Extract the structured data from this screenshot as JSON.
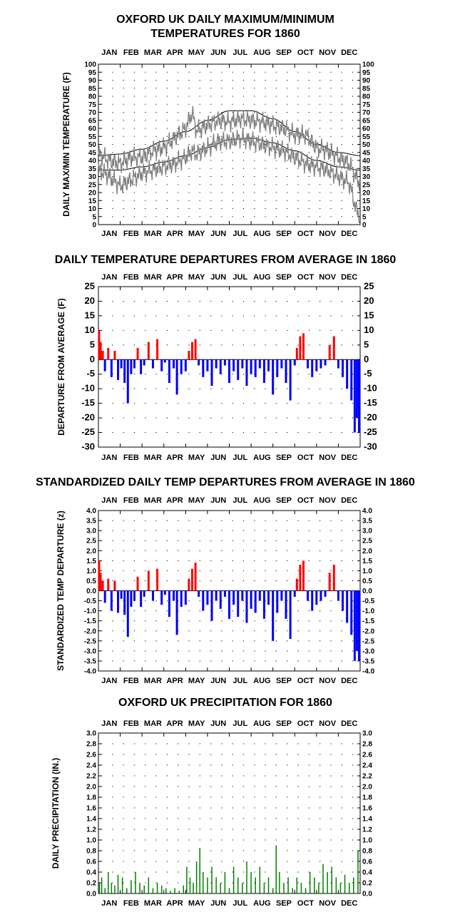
{
  "chart_data": [
    {
      "id": "maxmin",
      "type": "line",
      "title_lines": [
        "OXFORD UK DAILY MAXIMUM/MINIMUM",
        "TEMPERATURES FOR 1860"
      ],
      "ylabel": "DAILY MAX/MIN TEMPERATURE (F)",
      "months": [
        "JAN",
        "FEB",
        "MAR",
        "APR",
        "MAY",
        "JUN",
        "JUL",
        "AUG",
        "SEP",
        "OCT",
        "NOV",
        "DEC"
      ],
      "ylim": [
        0,
        100
      ],
      "ytick_step": 5,
      "ytick_labels": [
        "0",
        "5",
        "10",
        "15",
        "20",
        "25",
        "30",
        "35",
        "40",
        "45",
        "50",
        "55",
        "60",
        "65",
        "70",
        "75",
        "80",
        "85",
        "90",
        "95",
        "100"
      ],
      "grid": "dotted",
      "series": [
        {
          "role": "average_max",
          "color": "#000000",
          "x_month": [
            1,
            2,
            3,
            4,
            5,
            6,
            7,
            8,
            9,
            10,
            11,
            12,
            13
          ],
          "values": [
            43,
            44,
            47,
            52,
            58,
            65,
            71,
            71,
            66,
            58,
            50,
            45,
            43
          ]
        },
        {
          "role": "average_min",
          "color": "#000000",
          "x_month": [
            1,
            2,
            3,
            4,
            5,
            6,
            7,
            8,
            9,
            10,
            11,
            12,
            13
          ],
          "values": [
            34,
            34,
            36,
            39,
            43,
            48,
            53,
            54,
            51,
            46,
            40,
            36,
            34
          ]
        },
        {
          "role": "daily_max",
          "color": "#808080",
          "x_month": [
            1,
            1.5,
            2,
            2.5,
            3,
            3.5,
            4,
            4.5,
            5,
            5.3,
            5.5,
            6,
            6.5,
            7,
            7.5,
            8,
            8.5,
            9,
            9.5,
            10,
            10.5,
            11,
            11.5,
            12,
            12.5,
            12.8,
            13
          ],
          "values": [
            44,
            40,
            38,
            42,
            42,
            46,
            48,
            54,
            60,
            70,
            58,
            62,
            65,
            64,
            66,
            65,
            64,
            62,
            60,
            56,
            56,
            48,
            46,
            42,
            38,
            30,
            25
          ]
        },
        {
          "role": "daily_min",
          "color": "#808080",
          "x_month": [
            1,
            1.5,
            2,
            2.5,
            3,
            3.5,
            4,
            4.5,
            5,
            5.3,
            5.5,
            6,
            6.5,
            7,
            7.5,
            8,
            8.5,
            9,
            9.5,
            10,
            10.5,
            11,
            11.5,
            12,
            12.5,
            12.8,
            13
          ],
          "values": [
            34,
            30,
            24,
            28,
            32,
            34,
            36,
            38,
            42,
            46,
            44,
            48,
            52,
            52,
            54,
            52,
            50,
            48,
            46,
            42,
            38,
            36,
            34,
            30,
            26,
            10,
            5
          ]
        }
      ]
    },
    {
      "id": "departures",
      "type": "bar",
      "title": "DAILY TEMPERATURE DEPARTURES FROM AVERAGE IN 1860",
      "ylabel": "DEPARTURE FROM AVERAGE (F)",
      "months": [
        "JAN",
        "FEB",
        "MAR",
        "APR",
        "MAY",
        "JUN",
        "JUL",
        "AUG",
        "SEP",
        "OCT",
        "NOV",
        "DEC"
      ],
      "ylim": [
        -30,
        25
      ],
      "ytick_step": 5,
      "ytick_labels": [
        "-30",
        "-25",
        "-20",
        "-15",
        "-10",
        "-5",
        "0",
        "5",
        "10",
        "15",
        "20",
        "25"
      ],
      "colors": {
        "positive": "#ff0000",
        "negative": "#0000ff"
      },
      "x_month": [
        1.03,
        1.1,
        1.2,
        1.3,
        1.45,
        1.6,
        1.75,
        1.9,
        2.05,
        2.2,
        2.35,
        2.5,
        2.65,
        2.8,
        2.95,
        3.1,
        3.3,
        3.5,
        3.7,
        3.9,
        4.05,
        4.25,
        4.45,
        4.6,
        4.8,
        5.0,
        5.15,
        5.3,
        5.45,
        5.6,
        5.8,
        6.0,
        6.2,
        6.4,
        6.6,
        6.8,
        7.0,
        7.2,
        7.4,
        7.6,
        7.8,
        8.0,
        8.2,
        8.4,
        8.6,
        8.8,
        9.0,
        9.2,
        9.4,
        9.6,
        9.8,
        10.0,
        10.1,
        10.25,
        10.4,
        10.6,
        10.8,
        11.0,
        11.2,
        11.4,
        11.6,
        11.8,
        12.0,
        12.2,
        12.4,
        12.6,
        12.75,
        12.85,
        12.95
      ],
      "values": [
        10,
        6,
        3,
        -4,
        4,
        -6,
        3,
        -7,
        -3,
        -8,
        -15,
        -5,
        -3,
        4,
        -5,
        -2,
        6,
        -3,
        7,
        -4,
        -1,
        -8,
        -3,
        -12,
        -5,
        -4,
        3,
        6,
        7,
        -2,
        -6,
        -4,
        -9,
        -3,
        -5,
        -2,
        -8,
        -4,
        -7,
        -3,
        -9,
        -5,
        -6,
        -3,
        -8,
        -4,
        -12,
        -6,
        -3,
        -8,
        -14,
        -2,
        4,
        8,
        9,
        -3,
        -6,
        -4,
        -3,
        -2,
        5,
        8,
        -3,
        -6,
        -10,
        -14,
        -25,
        -20,
        -25
      ]
    },
    {
      "id": "standardized",
      "type": "bar",
      "title": "STANDARDIZED DAILY TEMP DEPARTURES FROM AVERAGE IN 1860",
      "ylabel": "STANDARDIZED TEMP DEPARTURE (z)",
      "months": [
        "JAN",
        "FEB",
        "MAR",
        "APR",
        "MAY",
        "JUN",
        "JUL",
        "AUG",
        "SEP",
        "OCT",
        "NOV",
        "DEC"
      ],
      "ylim": [
        -4.0,
        4.0
      ],
      "ytick_step": 0.5,
      "ytick_labels": [
        "-4.0",
        "-3.5",
        "-3.0",
        "-2.5",
        "-2.0",
        "-1.5",
        "-1.0",
        "-0.5",
        "0.0",
        "0.5",
        "1.0",
        "1.5",
        "2.0",
        "2.5",
        "3.0",
        "3.5",
        "4.0"
      ],
      "colors": {
        "positive": "#ff0000",
        "negative": "#0000ff"
      },
      "x_month": [
        1.03,
        1.1,
        1.2,
        1.3,
        1.45,
        1.6,
        1.75,
        1.9,
        2.05,
        2.2,
        2.35,
        2.5,
        2.65,
        2.8,
        2.95,
        3.1,
        3.3,
        3.5,
        3.7,
        3.9,
        4.05,
        4.25,
        4.45,
        4.6,
        4.8,
        5.0,
        5.15,
        5.3,
        5.45,
        5.6,
        5.8,
        6.0,
        6.2,
        6.4,
        6.6,
        6.8,
        7.0,
        7.2,
        7.4,
        7.6,
        7.8,
        8.0,
        8.2,
        8.4,
        8.6,
        8.8,
        9.0,
        9.2,
        9.4,
        9.6,
        9.8,
        10.0,
        10.1,
        10.25,
        10.4,
        10.6,
        10.8,
        11.0,
        11.2,
        11.4,
        11.6,
        11.8,
        12.0,
        12.2,
        12.4,
        12.6,
        12.75,
        12.85,
        12.95
      ],
      "values": [
        1.5,
        0.9,
        0.5,
        -0.6,
        0.6,
        -1.0,
        0.5,
        -1.1,
        -0.4,
        -1.2,
        -2.3,
        -0.8,
        -0.5,
        0.7,
        -0.8,
        -0.3,
        1.0,
        -0.5,
        1.1,
        -0.7,
        -0.2,
        -1.3,
        -0.5,
        -2.2,
        -0.8,
        -0.7,
        0.6,
        1.1,
        1.4,
        -0.3,
        -1.0,
        -0.7,
        -1.5,
        -0.5,
        -0.9,
        -0.3,
        -1.4,
        -0.7,
        -1.3,
        -0.5,
        -1.6,
        -0.9,
        -1.1,
        -0.5,
        -1.4,
        -0.7,
        -2.5,
        -1.1,
        -0.5,
        -1.4,
        -2.4,
        -0.3,
        0.6,
        1.3,
        1.5,
        -0.5,
        -1.0,
        -0.7,
        -0.5,
        -0.3,
        0.9,
        1.3,
        -0.5,
        -1.0,
        -1.6,
        -2.2,
        -3.5,
        -3.0,
        -3.5
      ]
    },
    {
      "id": "precip",
      "type": "bar",
      "title": "OXFORD UK PRECIPITATION FOR 1860",
      "ylabel": "DAILY PRECIPITATION (IN.)",
      "months": [
        "JAN",
        "FEB",
        "MAR",
        "APR",
        "MAY",
        "JUN",
        "JUL",
        "AUG",
        "SEP",
        "OCT",
        "NOV",
        "DEC"
      ],
      "ylim": [
        0.0,
        3.0
      ],
      "ytick_step": 0.2,
      "ytick_labels": [
        "0.0",
        "0.2",
        "0.4",
        "0.6",
        "0.8",
        "1.0",
        "1.2",
        "1.4",
        "1.6",
        "1.8",
        "2.0",
        "2.2",
        "2.4",
        "2.6",
        "2.8",
        "3.0"
      ],
      "colors": {
        "bar": "#008000"
      },
      "x_month": [
        1.05,
        1.15,
        1.3,
        1.45,
        1.6,
        1.75,
        1.9,
        2.1,
        2.3,
        2.5,
        2.7,
        2.9,
        3.1,
        3.3,
        3.5,
        3.7,
        3.9,
        4.1,
        4.3,
        4.5,
        4.7,
        4.9,
        5.05,
        5.2,
        5.35,
        5.5,
        5.65,
        5.8,
        6.0,
        6.2,
        6.4,
        6.6,
        6.8,
        7.0,
        7.2,
        7.4,
        7.6,
        7.8,
        8.0,
        8.2,
        8.4,
        8.6,
        8.8,
        9.0,
        9.15,
        9.3,
        9.5,
        9.7,
        9.9,
        10.1,
        10.3,
        10.5,
        10.7,
        10.9,
        11.1,
        11.3,
        11.5,
        11.7,
        11.9,
        12.1,
        12.3,
        12.5,
        12.7,
        12.9
      ],
      "values": [
        0.2,
        0.3,
        0.1,
        0.4,
        0.2,
        0.15,
        0.35,
        0.3,
        0.1,
        0.25,
        0.4,
        0.2,
        0.15,
        0.3,
        0.1,
        0.2,
        0.15,
        0.1,
        0.05,
        0.1,
        0.05,
        0.15,
        0.5,
        0.3,
        0.2,
        0.6,
        0.85,
        0.4,
        0.3,
        0.5,
        0.3,
        0.2,
        0.4,
        0.1,
        0.5,
        0.3,
        0.2,
        0.6,
        0.4,
        0.3,
        0.5,
        0.2,
        0.3,
        0.1,
        0.9,
        0.4,
        0.2,
        0.3,
        0.1,
        0.3,
        0.2,
        0.1,
        0.4,
        0.3,
        0.2,
        0.55,
        0.4,
        0.5,
        0.3,
        0.2,
        0.35,
        0.2,
        0.3,
        0.8
      ]
    }
  ]
}
